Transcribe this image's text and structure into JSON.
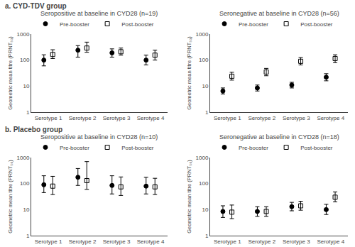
{
  "chart_data": [
    {
      "type": "scatter",
      "title": "Seropositive at baseline in CYD28 (n=19)",
      "annotations": [
        "a. CYD-TDV group"
      ],
      "categories": [
        "Serotype 1",
        "Serotype 2",
        "Serotype 3",
        "Serotype 4"
      ],
      "ylabel": "Geometric mean titre (PRNT₅₀)",
      "log": "y",
      "ylim": [
        1,
        1000
      ],
      "yticks": [
        1,
        10,
        100,
        1000
      ],
      "grid": false,
      "legend": "upper left",
      "series": [
        {
          "name": "Pre-booster",
          "color": "black",
          "marker": "circle",
          "values": [
            100,
            240,
            190,
            100
          ],
          "lower": [
            60,
            130,
            130,
            65
          ],
          "upper": [
            160,
            360,
            270,
            155
          ]
        },
        {
          "name": "Post-booster",
          "color": "black",
          "marker": "square-open",
          "values": [
            165,
            290,
            210,
            155
          ],
          "lower": [
            115,
            200,
            155,
            100
          ],
          "upper": [
            250,
            490,
            290,
            240
          ]
        }
      ]
    },
    {
      "type": "scatter",
      "title": "Seronegative at baseline in CYD28 (n=56)",
      "categories": [
        "Serotype 1",
        "Serotype 2",
        "Serotype 3",
        "Serotype 4"
      ],
      "ylabel": "Geometric mean titre (PRNT₅₀)",
      "log": "y",
      "ylim": [
        1,
        1000
      ],
      "yticks": [
        1,
        10,
        100,
        1000
      ],
      "grid": false,
      "legend": "upper left",
      "series": [
        {
          "name": "Pre-booster",
          "color": "black",
          "marker": "circle",
          "values": [
            6.5,
            8.5,
            11,
            22
          ],
          "lower": [
            5.0,
            6.5,
            8.5,
            16
          ],
          "upper": [
            8.5,
            11,
            14,
            30
          ]
        },
        {
          "name": "Post-booster",
          "color": "black",
          "marker": "square-open",
          "values": [
            24,
            35,
            90,
            115
          ],
          "lower": [
            17,
            25,
            65,
            80
          ],
          "upper": [
            34,
            48,
            125,
            160
          ]
        }
      ]
    },
    {
      "type": "scatter",
      "title": "Seropositive at baseline in CYD28 (n=10)",
      "annotations": [
        "b. Placebo group"
      ],
      "categories": [
        "Serotype 1",
        "Serotype 2",
        "Serotype 3",
        "Serotype 4"
      ],
      "ylabel": "Geometric mean titre (PRNT₅₀)",
      "log": "y",
      "ylim": [
        1,
        1000
      ],
      "yticks": [
        1,
        10,
        100,
        1000
      ],
      "grid": false,
      "legend": "upper left",
      "series": [
        {
          "name": "Pre-booster",
          "color": "black",
          "marker": "circle",
          "values": [
            90,
            175,
            85,
            80
          ],
          "lower": [
            45,
            85,
            40,
            40
          ],
          "upper": [
            200,
            380,
            200,
            175
          ]
        },
        {
          "name": "Post-booster",
          "color": "black",
          "marker": "square-open",
          "values": [
            80,
            130,
            75,
            75
          ],
          "lower": [
            38,
            60,
            35,
            38
          ],
          "upper": [
            190,
            700,
            180,
            160
          ]
        }
      ]
    },
    {
      "type": "scatter",
      "title": "Seronegative at baseline in CYD28 (n=18)",
      "categories": [
        "Serotype 1",
        "Serotype 2",
        "Serotype 3",
        "Serotype 4"
      ],
      "ylabel": "Geometric mean titre (PRNT₅₀)",
      "log": "y",
      "ylim": [
        1,
        1000
      ],
      "yticks": [
        1,
        10,
        100,
        1000
      ],
      "grid": false,
      "legend": "upper left",
      "series": [
        {
          "name": "Pre-booster",
          "color": "black",
          "marker": "circle",
          "values": [
            8.5,
            8.5,
            13,
            10
          ],
          "lower": [
            5.0,
            5.5,
            9.0,
            6.5
          ],
          "upper": [
            14,
            13,
            19,
            16
          ]
        },
        {
          "name": "Post-booster",
          "color": "black",
          "marker": "square-open",
          "values": [
            8.0,
            8.5,
            14,
            30
          ],
          "lower": [
            4.5,
            5.5,
            9.5,
            20
          ],
          "upper": [
            15,
            13,
            21,
            48
          ]
        }
      ]
    }
  ]
}
